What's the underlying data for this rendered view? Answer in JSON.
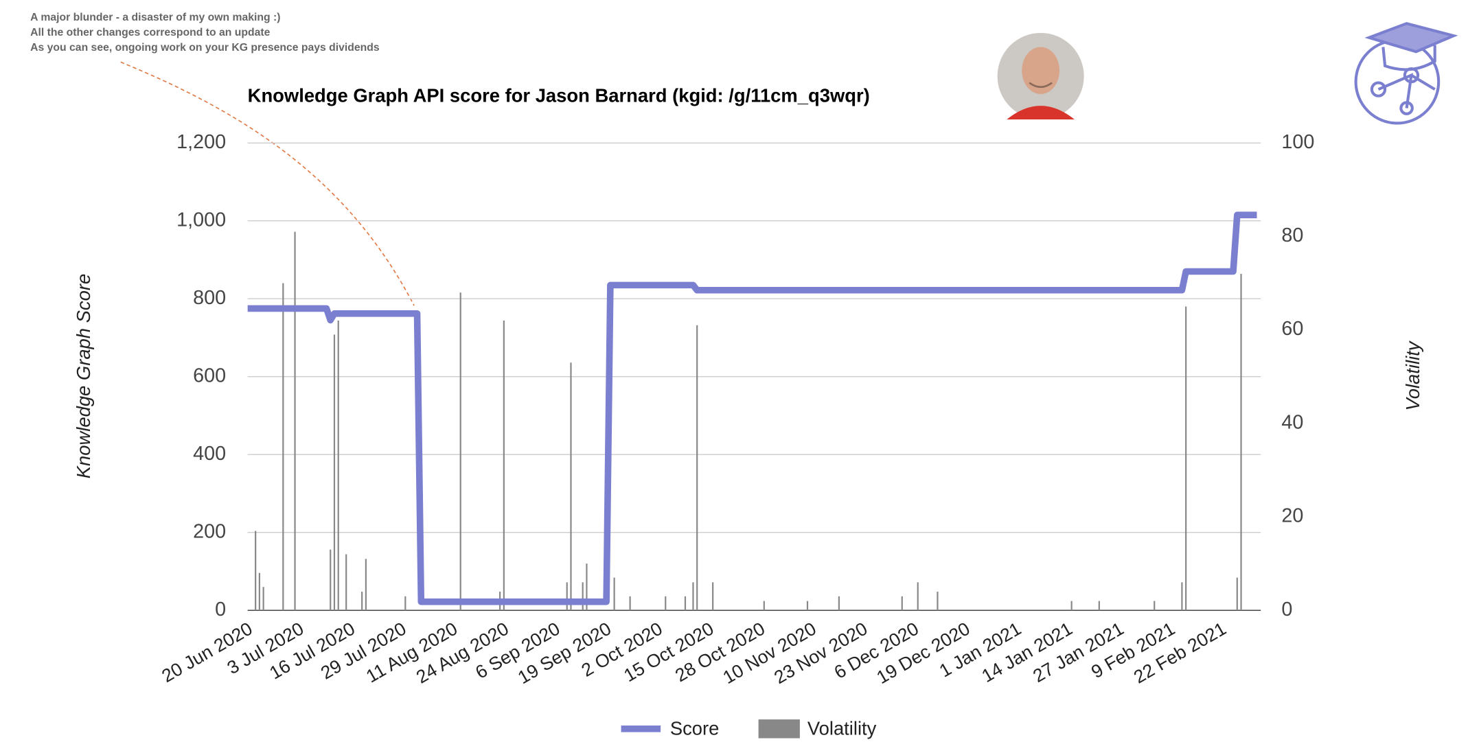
{
  "chart_data": {
    "type": "combo",
    "title": "Knowledge Graph API score for Jason Barnard (kgid: /g/11cm_q3wqr)",
    "annotations": [
      "A major blunder - a disaster of my own making :)",
      "All the other changes correspond to an update",
      "As you can see, ongoing work on your KG presence pays dividends"
    ],
    "y_label": "Knowledge Graph Score",
    "y2_label": "Volatility",
    "xlim": [
      "20 Jun 2020",
      "4 Mar 2021"
    ],
    "xticks": [
      "20 Jun 2020",
      "3 Jul 2020",
      "16 Jul 2020",
      "29 Jul 2020",
      "11 Aug 2020",
      "24 Aug 2020",
      "6 Sep 2020",
      "19 Sep 2020",
      "2 Oct 2020",
      "15 Oct 2020",
      "28 Oct 2020",
      "10 Nov 2020",
      "23 Nov 2020",
      "6 Dec 2020",
      "19 Dec 2020",
      "1 Jan 2021",
      "14 Jan 2021",
      "27 Jan 2021",
      "9 Feb 2021",
      "22 Feb 2021"
    ],
    "ylim": [
      0,
      1200
    ],
    "yticks": [
      0,
      200,
      400,
      600,
      800,
      {
        "value": 1000,
        "label": "1,000"
      },
      {
        "value": 1200,
        "label": "1,200"
      }
    ],
    "y2lim": [
      0,
      100
    ],
    "y2ticks": [
      0,
      20,
      40,
      60,
      80,
      100
    ],
    "grid": true,
    "legend": "bottom",
    "series": [
      {
        "name": "Score",
        "type": "line",
        "color": "#7b7fcf",
        "x": [
          "20 Jun 2020",
          "10 Jul 2020",
          "11 Jul 2020",
          "12 Jul 2020",
          "2 Aug 2020",
          "3 Aug 2020",
          "19 Sep 2020",
          "20 Sep 2020",
          "11 Oct 2020",
          "12 Oct 2020",
          "12 Feb 2021",
          "13 Feb 2021",
          "25 Feb 2021",
          "26 Feb 2021",
          "3 Mar 2021"
        ],
        "values": [
          775,
          775,
          745,
          762,
          762,
          22,
          22,
          835,
          835,
          822,
          822,
          870,
          870,
          1015,
          1015
        ]
      },
      {
        "name": "Volatility",
        "type": "bar",
        "axis": "y2",
        "color": "#888888",
        "x": [
          "22 Jun 2020",
          "23 Jun 2020",
          "24 Jun 2020",
          "29 Jun 2020",
          "2 Jul 2020",
          "11 Jul 2020",
          "12 Jul 2020",
          "13 Jul 2020",
          "15 Jul 2020",
          "19 Jul 2020",
          "20 Jul 2020",
          "30 Jul 2020",
          "13 Aug 2020",
          "23 Aug 2020",
          "24 Aug 2020",
          "9 Sep 2020",
          "10 Sep 2020",
          "13 Sep 2020",
          "14 Sep 2020",
          "21 Sep 2020",
          "25 Sep 2020",
          "4 Oct 2020",
          "9 Oct 2020",
          "11 Oct 2020",
          "12 Oct 2020",
          "16 Oct 2020",
          "29 Oct 2020",
          "9 Nov 2020",
          "17 Nov 2020",
          "3 Dec 2020",
          "7 Dec 2020",
          "12 Dec 2020",
          "15 Jan 2021",
          "22 Jan 2021",
          "5 Feb 2021",
          "12 Feb 2021",
          "13 Feb 2021",
          "26 Feb 2021",
          "27 Feb 2021"
        ],
        "values": [
          17,
          8,
          5,
          70,
          81,
          13,
          59,
          62,
          12,
          4,
          11,
          3,
          68,
          4,
          62,
          6,
          53,
          6,
          10,
          7,
          3,
          3,
          3,
          6,
          61,
          6,
          2,
          2,
          3,
          3,
          6,
          4,
          2,
          2,
          2,
          6,
          65,
          7,
          72
        ]
      }
    ]
  }
}
